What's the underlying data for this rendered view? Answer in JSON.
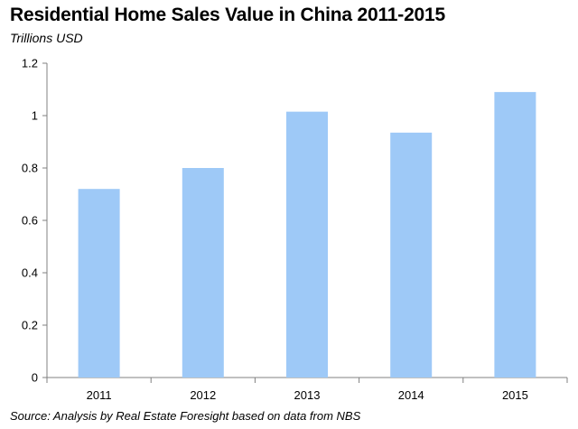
{
  "chart_data": {
    "type": "bar",
    "title": "Residential Home Sales Value in China 2011-2015",
    "subtitle": "Trillions USD",
    "categories": [
      "2011",
      "2012",
      "2013",
      "2014",
      "2015"
    ],
    "values": [
      0.72,
      0.8,
      1.015,
      0.935,
      1.09
    ],
    "ylim": [
      0,
      1.2
    ],
    "yticks": [
      "0",
      "0.2",
      "0.4",
      "0.6",
      "0.8",
      "1",
      "1.2"
    ],
    "xlabel": "",
    "ylabel": "",
    "grid": false,
    "bar_color": "#9ec9f7",
    "source": "Source: Analysis by Real Estate Foresight based on data from NBS"
  }
}
